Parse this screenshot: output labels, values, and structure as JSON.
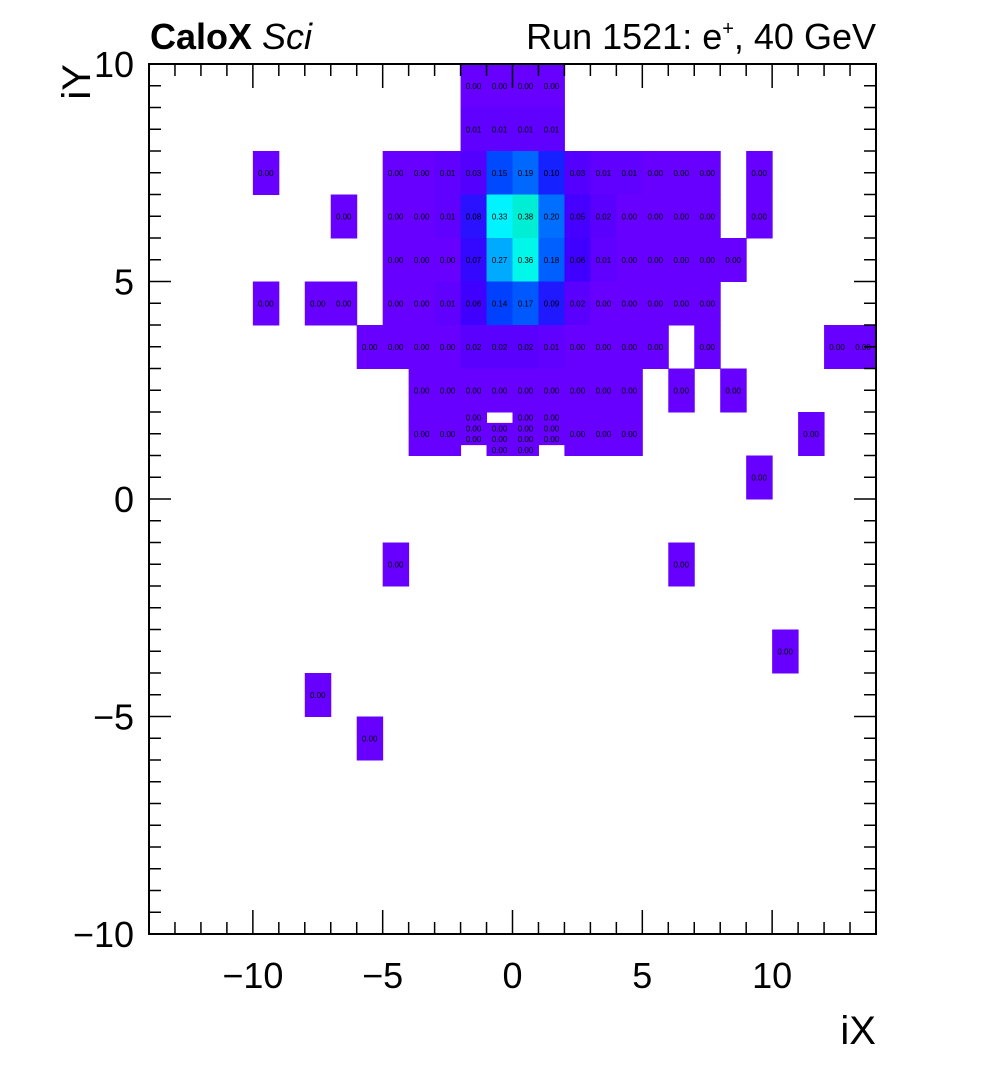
{
  "header": {
    "experiment": "CaloX",
    "tag": "Sci",
    "run_prefix": "Run 1521: e",
    "run_particle_sup": "+",
    "run_suffix": ", 40 GeV"
  },
  "chart_data": {
    "type": "heatmap",
    "title": "",
    "xlabel": "iX",
    "ylabel": "iY",
    "xlim": [
      -14,
      14
    ],
    "ylim": [
      -10,
      10
    ],
    "xticks": [
      -10,
      -5,
      0,
      5,
      10
    ],
    "yticks": [
      -10,
      -5,
      0,
      5,
      10
    ],
    "xtick_labels": [
      "−10",
      "−5",
      "0",
      "5",
      "10"
    ],
    "ytick_labels": [
      "−10",
      "−5",
      "0",
      "5",
      "10"
    ],
    "grid": false,
    "colormap": "violet-blue-cyan-green",
    "cells": [
      {
        "x": -2,
        "y": 9,
        "v": 0.0
      },
      {
        "x": -1,
        "y": 9,
        "v": 0.0
      },
      {
        "x": 0,
        "y": 9,
        "v": 0.0
      },
      {
        "x": 1,
        "y": 9,
        "v": 0.0
      },
      {
        "x": -2,
        "y": 8,
        "v": 0.01
      },
      {
        "x": -1,
        "y": 8,
        "v": 0.01
      },
      {
        "x": 0,
        "y": 8,
        "v": 0.01
      },
      {
        "x": 1,
        "y": 8,
        "v": 0.01
      },
      {
        "x": -10,
        "y": 7,
        "v": 0.0
      },
      {
        "x": -5,
        "y": 7,
        "v": 0.0
      },
      {
        "x": -4,
        "y": 7,
        "v": 0.0
      },
      {
        "x": -3,
        "y": 7,
        "v": 0.01
      },
      {
        "x": -2,
        "y": 7,
        "v": 0.03
      },
      {
        "x": -1,
        "y": 7,
        "v": 0.15
      },
      {
        "x": 0,
        "y": 7,
        "v": 0.19
      },
      {
        "x": 1,
        "y": 7,
        "v": 0.1
      },
      {
        "x": 2,
        "y": 7,
        "v": 0.03
      },
      {
        "x": 3,
        "y": 7,
        "v": 0.01
      },
      {
        "x": 4,
        "y": 7,
        "v": 0.01
      },
      {
        "x": 5,
        "y": 7,
        "v": 0.0
      },
      {
        "x": 6,
        "y": 7,
        "v": 0.0
      },
      {
        "x": 7,
        "y": 7,
        "v": 0.0
      },
      {
        "x": 9,
        "y": 7,
        "v": 0.0
      },
      {
        "x": -7,
        "y": 6,
        "v": 0.0
      },
      {
        "x": -5,
        "y": 6,
        "v": 0.0
      },
      {
        "x": -4,
        "y": 6,
        "v": 0.0
      },
      {
        "x": -3,
        "y": 6,
        "v": 0.01
      },
      {
        "x": -2,
        "y": 6,
        "v": 0.08
      },
      {
        "x": -1,
        "y": 6,
        "v": 0.33
      },
      {
        "x": 0,
        "y": 6,
        "v": 0.38
      },
      {
        "x": 1,
        "y": 6,
        "v": 0.2
      },
      {
        "x": 2,
        "y": 6,
        "v": 0.05
      },
      {
        "x": 3,
        "y": 6,
        "v": 0.02
      },
      {
        "x": 4,
        "y": 6,
        "v": 0.0
      },
      {
        "x": 5,
        "y": 6,
        "v": 0.0
      },
      {
        "x": 6,
        "y": 6,
        "v": 0.0
      },
      {
        "x": 7,
        "y": 6,
        "v": 0.0
      },
      {
        "x": 9,
        "y": 6,
        "v": 0.0
      },
      {
        "x": -5,
        "y": 5,
        "v": 0.0
      },
      {
        "x": -4,
        "y": 5,
        "v": 0.0
      },
      {
        "x": -3,
        "y": 5,
        "v": 0.0
      },
      {
        "x": -2,
        "y": 5,
        "v": 0.07
      },
      {
        "x": -1,
        "y": 5,
        "v": 0.27
      },
      {
        "x": 0,
        "y": 5,
        "v": 0.36
      },
      {
        "x": 1,
        "y": 5,
        "v": 0.18
      },
      {
        "x": 2,
        "y": 5,
        "v": 0.06
      },
      {
        "x": 3,
        "y": 5,
        "v": 0.01
      },
      {
        "x": 4,
        "y": 5,
        "v": 0.0
      },
      {
        "x": 5,
        "y": 5,
        "v": 0.0
      },
      {
        "x": 6,
        "y": 5,
        "v": 0.0
      },
      {
        "x": 7,
        "y": 5,
        "v": 0.0
      },
      {
        "x": 8,
        "y": 5,
        "v": 0.0
      },
      {
        "x": -10,
        "y": 4,
        "v": 0.0
      },
      {
        "x": -8,
        "y": 4,
        "v": 0.0
      },
      {
        "x": -7,
        "y": 4,
        "v": 0.0
      },
      {
        "x": -5,
        "y": 4,
        "v": 0.0
      },
      {
        "x": -4,
        "y": 4,
        "v": 0.0
      },
      {
        "x": -3,
        "y": 4,
        "v": 0.01
      },
      {
        "x": -2,
        "y": 4,
        "v": 0.06
      },
      {
        "x": -1,
        "y": 4,
        "v": 0.14
      },
      {
        "x": 0,
        "y": 4,
        "v": 0.17
      },
      {
        "x": 1,
        "y": 4,
        "v": 0.09
      },
      {
        "x": 2,
        "y": 4,
        "v": 0.02
      },
      {
        "x": 3,
        "y": 4,
        "v": 0.0
      },
      {
        "x": 4,
        "y": 4,
        "v": 0.0
      },
      {
        "x": 5,
        "y": 4,
        "v": 0.0
      },
      {
        "x": 6,
        "y": 4,
        "v": 0.0
      },
      {
        "x": 7,
        "y": 4,
        "v": 0.0
      },
      {
        "x": -6,
        "y": 3,
        "v": 0.0
      },
      {
        "x": -5,
        "y": 3,
        "v": 0.0
      },
      {
        "x": -4,
        "y": 3,
        "v": 0.0
      },
      {
        "x": -3,
        "y": 3,
        "v": 0.0
      },
      {
        "x": -2,
        "y": 3,
        "v": 0.02
      },
      {
        "x": -1,
        "y": 3,
        "v": 0.02
      },
      {
        "x": 0,
        "y": 3,
        "v": 0.02
      },
      {
        "x": 1,
        "y": 3,
        "v": 0.01
      },
      {
        "x": 2,
        "y": 3,
        "v": 0.0
      },
      {
        "x": 3,
        "y": 3,
        "v": 0.0
      },
      {
        "x": 4,
        "y": 3,
        "v": 0.0
      },
      {
        "x": 5,
        "y": 3,
        "v": 0.0
      },
      {
        "x": 7,
        "y": 3,
        "v": 0.0
      },
      {
        "x": 12,
        "y": 3,
        "v": 0.0
      },
      {
        "x": 13,
        "y": 3,
        "v": 0.0
      },
      {
        "x": -4,
        "y": 2,
        "v": 0.0
      },
      {
        "x": -3,
        "y": 2,
        "v": 0.0
      },
      {
        "x": -2,
        "y": 2,
        "v": 0.0
      },
      {
        "x": -1,
        "y": 2,
        "v": 0.0
      },
      {
        "x": 0,
        "y": 2,
        "v": 0.0
      },
      {
        "x": 1,
        "y": 2,
        "v": 0.0
      },
      {
        "x": 2,
        "y": 2,
        "v": 0.0
      },
      {
        "x": 3,
        "y": 2,
        "v": 0.0
      },
      {
        "x": 4,
        "y": 2,
        "v": 0.0
      },
      {
        "x": 6,
        "y": 2,
        "v": 0.0
      },
      {
        "x": 8,
        "y": 2,
        "v": 0.0
      },
      {
        "x": -4,
        "y": 1,
        "v": 0.0
      },
      {
        "x": -3,
        "y": 1,
        "v": 0.0
      },
      {
        "x": 2,
        "y": 1,
        "v": 0.0
      },
      {
        "x": 3,
        "y": 1,
        "v": 0.0
      },
      {
        "x": 4,
        "y": 1,
        "v": 0.0
      },
      {
        "x": 11,
        "y": 1,
        "v": 0.0
      },
      {
        "x": 9,
        "y": 0,
        "v": 0.0
      },
      {
        "x": -5,
        "y": -2,
        "v": 0.0
      },
      {
        "x": 6,
        "y": -2,
        "v": 0.0
      },
      {
        "x": 10,
        "y": -4,
        "v": 0.0
      },
      {
        "x": -8,
        "y": -5,
        "v": 0.0
      },
      {
        "x": -6,
        "y": -6,
        "v": 0.0
      }
    ],
    "subcells": [
      {
        "x": -2,
        "y": 1,
        "subrow": 3,
        "v": 0.0
      },
      {
        "x": -2,
        "y": 1,
        "subrow": 2,
        "v": 0.0
      },
      {
        "x": -2,
        "y": 1,
        "subrow": 1,
        "v": 0.0
      },
      {
        "x": -1,
        "y": 1,
        "subrow": 2,
        "v": 0.0
      },
      {
        "x": -1,
        "y": 1,
        "subrow": 1,
        "v": 0.0
      },
      {
        "x": -1,
        "y": 1,
        "subrow": 0,
        "v": 0.0
      },
      {
        "x": 0,
        "y": 1,
        "subrow": 3,
        "v": 0.0
      },
      {
        "x": 0,
        "y": 1,
        "subrow": 2,
        "v": 0.0
      },
      {
        "x": 0,
        "y": 1,
        "subrow": 1,
        "v": 0.0
      },
      {
        "x": 0,
        "y": 1,
        "subrow": 0,
        "v": 0.0
      },
      {
        "x": 1,
        "y": 1,
        "subrow": 3,
        "v": 0.0
      },
      {
        "x": 1,
        "y": 1,
        "subrow": 2,
        "v": 0.0
      },
      {
        "x": 1,
        "y": 1,
        "subrow": 1,
        "v": 0.0
      }
    ]
  }
}
